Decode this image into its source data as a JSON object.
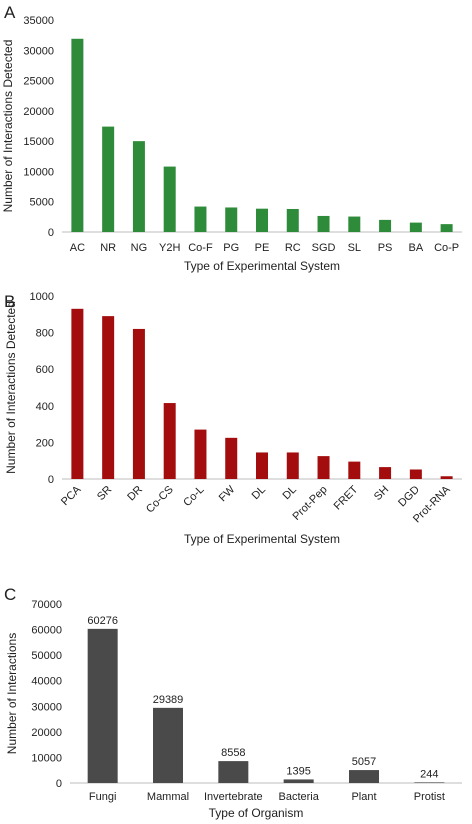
{
  "chart_data": [
    {
      "panel": "A",
      "type": "bar",
      "categories": [
        "AC",
        "NR",
        "NG",
        "Y2H",
        "Co-F",
        "PG",
        "PE",
        "RC",
        "SGD",
        "SL",
        "PS",
        "BA",
        "Co-P"
      ],
      "values": [
        31900,
        17400,
        15000,
        10800,
        4200,
        4050,
        3850,
        3800,
        2650,
        2550,
        2000,
        1550,
        1300
      ],
      "xlabel": "Type of Experimental System",
      "ylabel": "Number of Interactions Detected",
      "ylim": [
        0,
        35000
      ],
      "yticks": [
        0,
        5000,
        10000,
        15000,
        20000,
        25000,
        30000,
        35000
      ],
      "grid": false,
      "color": "#2e8b3a"
    },
    {
      "panel": "B",
      "type": "bar",
      "categories": [
        "PCA",
        "SR",
        "DR",
        "Co-CS",
        "Co-L",
        "FW",
        "DL",
        "DL",
        "Prot-Pep",
        "FRET",
        "SH",
        "DGD",
        "Prot-RNA"
      ],
      "values": [
        930,
        890,
        820,
        415,
        270,
        225,
        145,
        145,
        125,
        95,
        65,
        52,
        15
      ],
      "xlabel": "Type of Experimental System",
      "ylabel": "Number of Interactions Detected",
      "ylim": [
        0,
        1000
      ],
      "yticks": [
        0,
        200,
        400,
        600,
        800,
        1000
      ],
      "grid": false,
      "color": "#a30d0d"
    },
    {
      "panel": "C",
      "type": "bar",
      "categories": [
        "Fungi",
        "Mammal",
        "Invertebrate",
        "Bacteria",
        "Plant",
        "Protist"
      ],
      "values": [
        60276,
        29389,
        8558,
        1395,
        5057,
        244
      ],
      "data_labels": [
        "60276",
        "29389",
        "8558",
        "1395",
        "5057",
        "244"
      ],
      "xlabel": "Type of Organism",
      "ylabel": "Number of Interactions",
      "ylim": [
        0,
        70000
      ],
      "yticks": [
        0,
        10000,
        20000,
        30000,
        40000,
        50000,
        60000,
        70000
      ],
      "grid": false,
      "color": "#4a4a4a"
    }
  ]
}
